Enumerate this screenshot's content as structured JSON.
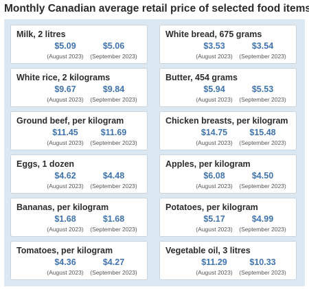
{
  "title": "Monthly Canadian average retail price of selected food items",
  "period_labels": {
    "first": "(August 2023)",
    "second": "(September 2023)"
  },
  "items": [
    {
      "name": "Milk, 2 litres",
      "aug": "$5.09",
      "sep": "$5.06"
    },
    {
      "name": "White bread, 675 grams",
      "aug": "$3.53",
      "sep": "$3.54"
    },
    {
      "name": "White rice, 2 kilograms",
      "aug": "$9.67",
      "sep": "$9.84"
    },
    {
      "name": "Butter, 454 grams",
      "aug": "$5.94",
      "sep": "$5.53"
    },
    {
      "name": "Ground beef, per kilogram",
      "aug": "$11.45",
      "sep": "$11.69"
    },
    {
      "name": "Chicken breasts, per kilogram",
      "aug": "$14.75",
      "sep": "$15.48"
    },
    {
      "name": "Eggs, 1 dozen",
      "aug": "$4.62",
      "sep": "$4.48"
    },
    {
      "name": "Apples, per kilogram",
      "aug": "$6.08",
      "sep": "$4.50"
    },
    {
      "name": "Bananas, per kilogram",
      "aug": "$1.68",
      "sep": "$1.68"
    },
    {
      "name": "Potatoes, per kilogram",
      "aug": "$5.17",
      "sep": "$4.99"
    },
    {
      "name": "Tomatoes, per kilogram",
      "aug": "$4.36",
      "sep": "$4.27"
    },
    {
      "name": "Vegetable oil, 3 litres",
      "aug": "$11.29",
      "sep": "$10.33"
    }
  ]
}
